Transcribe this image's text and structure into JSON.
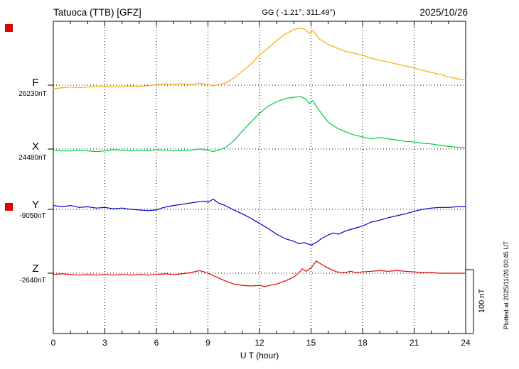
{
  "header": {
    "station": "Tatuoca (TTB)  [GFZ]",
    "coords": "GG ( -1.21°, 311.49°)",
    "date": "2025/10/26"
  },
  "axis": {
    "x_label": "U T (hour)",
    "x_ticks": [
      0,
      3,
      6,
      9,
      12,
      15,
      18,
      21,
      24
    ],
    "x_range": [
      0,
      24
    ]
  },
  "scale_bar": {
    "label": "100 nT",
    "nT": 100
  },
  "footer_note": "Plotted at 2025/11/26 00:45 UT",
  "markers": {
    "color": "#e00000"
  },
  "chart_data": {
    "type": "line",
    "x_unit": "UT hour",
    "x_range": [
      0,
      24
    ],
    "points_format": "[hour_UT, offset_nT_from_baseline]",
    "grid": "dotted vertical every 3 h, dotted horizontal at each component baseline",
    "legend_position": "left margin, colored component letters with baseline values",
    "series": [
      {
        "name": "F",
        "baseline_label": "26230nT",
        "baseline_nT": 26230,
        "color": "#ffa800",
        "points": [
          [
            0,
            -6
          ],
          [
            0.5,
            -4
          ],
          [
            1,
            -3
          ],
          [
            1.5,
            -4
          ],
          [
            2,
            -3
          ],
          [
            2.5,
            -2
          ],
          [
            3,
            -2
          ],
          [
            3.5,
            -3
          ],
          [
            4,
            -2
          ],
          [
            4.5,
            -1
          ],
          [
            5,
            -2
          ],
          [
            5.5,
            -1
          ],
          [
            6,
            1
          ],
          [
            6.5,
            2
          ],
          [
            7,
            1
          ],
          [
            7.5,
            2
          ],
          [
            8,
            1
          ],
          [
            8.5,
            3
          ],
          [
            9,
            1
          ],
          [
            9.25,
            -1
          ],
          [
            9.5,
            0
          ],
          [
            10,
            3
          ],
          [
            10.5,
            11
          ],
          [
            11,
            22
          ],
          [
            11.5,
            33
          ],
          [
            12,
            47
          ],
          [
            12.5,
            58
          ],
          [
            13,
            70
          ],
          [
            13.5,
            80
          ],
          [
            14,
            87
          ],
          [
            14.3,
            89
          ],
          [
            14.6,
            88
          ],
          [
            14.9,
            81
          ],
          [
            15.1,
            86
          ],
          [
            15.5,
            72
          ],
          [
            16,
            64
          ],
          [
            16.5,
            58
          ],
          [
            17,
            53
          ],
          [
            17.5,
            50
          ],
          [
            18,
            47
          ],
          [
            18.5,
            42
          ],
          [
            19,
            39
          ],
          [
            19.5,
            36
          ],
          [
            20,
            33
          ],
          [
            20.5,
            30
          ],
          [
            21,
            27
          ],
          [
            21.5,
            23
          ],
          [
            22,
            20
          ],
          [
            22.5,
            17
          ],
          [
            23,
            13
          ],
          [
            23.5,
            10
          ],
          [
            24,
            8
          ]
        ]
      },
      {
        "name": "X",
        "baseline_label": "24480nT",
        "baseline_nT": 24480,
        "color": "#00cb45",
        "points": [
          [
            0,
            -2
          ],
          [
            0.5,
            -3
          ],
          [
            1,
            -3
          ],
          [
            1.5,
            -2
          ],
          [
            2,
            -3
          ],
          [
            2.5,
            -4
          ],
          [
            3,
            -3
          ],
          [
            3.5,
            -1
          ],
          [
            4,
            -2
          ],
          [
            4.5,
            -3
          ],
          [
            5,
            -2
          ],
          [
            5.5,
            -3
          ],
          [
            6,
            -1
          ],
          [
            6.5,
            -2
          ],
          [
            7,
            -3
          ],
          [
            7.5,
            -2
          ],
          [
            8,
            -2
          ],
          [
            8.5,
            0
          ],
          [
            9,
            -2
          ],
          [
            9.3,
            -4
          ],
          [
            9.6,
            -2
          ],
          [
            10,
            2
          ],
          [
            10.5,
            13
          ],
          [
            11,
            28
          ],
          [
            11.5,
            42
          ],
          [
            12,
            56
          ],
          [
            12.5,
            67
          ],
          [
            13,
            74
          ],
          [
            13.5,
            79
          ],
          [
            14,
            81
          ],
          [
            14.4,
            82
          ],
          [
            14.7,
            78
          ],
          [
            14.9,
            71
          ],
          [
            15.1,
            76
          ],
          [
            15.3,
            67
          ],
          [
            15.6,
            56
          ],
          [
            16,
            42
          ],
          [
            16.5,
            33
          ],
          [
            17,
            27
          ],
          [
            17.5,
            22
          ],
          [
            18,
            19
          ],
          [
            18.5,
            16
          ],
          [
            19,
            18
          ],
          [
            19.5,
            16
          ],
          [
            20,
            14
          ],
          [
            20.5,
            12
          ],
          [
            21,
            11
          ],
          [
            21.5,
            9
          ],
          [
            22,
            8
          ],
          [
            22.5,
            6
          ],
          [
            23,
            4
          ],
          [
            23.5,
            3
          ],
          [
            24,
            2
          ]
        ]
      },
      {
        "name": "Y",
        "baseline_label": "-9050nT",
        "baseline_nT": -9050,
        "color": "#0000cc",
        "points": [
          [
            0,
            6
          ],
          [
            0.5,
            4
          ],
          [
            1,
            6
          ],
          [
            1.5,
            3
          ],
          [
            2,
            4
          ],
          [
            2.5,
            2
          ],
          [
            3,
            3
          ],
          [
            3.5,
            1
          ],
          [
            4,
            2
          ],
          [
            4.5,
            0
          ],
          [
            5,
            -1
          ],
          [
            5.5,
            -2
          ],
          [
            6,
            -1
          ],
          [
            6.3,
            2
          ],
          [
            6.6,
            4
          ],
          [
            7,
            6
          ],
          [
            7.5,
            8
          ],
          [
            8,
            10
          ],
          [
            8.5,
            12
          ],
          [
            8.8,
            13
          ],
          [
            9,
            11
          ],
          [
            9.3,
            16
          ],
          [
            9.6,
            10
          ],
          [
            10,
            6
          ],
          [
            10.5,
            -1
          ],
          [
            11,
            -7
          ],
          [
            11.5,
            -14
          ],
          [
            12,
            -22
          ],
          [
            12.5,
            -30
          ],
          [
            13,
            -39
          ],
          [
            13.5,
            -46
          ],
          [
            14,
            -50
          ],
          [
            14.3,
            -54
          ],
          [
            14.6,
            -52
          ],
          [
            15,
            -56
          ],
          [
            15.3,
            -52
          ],
          [
            15.6,
            -46
          ],
          [
            16,
            -40
          ],
          [
            16.3,
            -37
          ],
          [
            16.6,
            -39
          ],
          [
            17,
            -34
          ],
          [
            17.5,
            -30
          ],
          [
            18,
            -26
          ],
          [
            18.5,
            -20
          ],
          [
            19,
            -17
          ],
          [
            19.5,
            -13
          ],
          [
            20,
            -10
          ],
          [
            20.5,
            -7
          ],
          [
            21,
            -3
          ],
          [
            21.5,
            0
          ],
          [
            22,
            2
          ],
          [
            22.5,
            3
          ],
          [
            23,
            3
          ],
          [
            23.5,
            4
          ],
          [
            24,
            4
          ]
        ]
      },
      {
        "name": "Z",
        "baseline_label": "-2640nT",
        "baseline_nT": -2640,
        "color": "#e00000",
        "points": [
          [
            0,
            -2
          ],
          [
            0.5,
            -1
          ],
          [
            1,
            -2
          ],
          [
            1.5,
            -3
          ],
          [
            2,
            -2
          ],
          [
            2.5,
            -3
          ],
          [
            3,
            -2
          ],
          [
            3.5,
            -3
          ],
          [
            4,
            -2
          ],
          [
            4.5,
            -3
          ],
          [
            5,
            -2
          ],
          [
            5.5,
            -3
          ],
          [
            6,
            -2
          ],
          [
            6.5,
            -1
          ],
          [
            7,
            -2
          ],
          [
            7.5,
            -1
          ],
          [
            8,
            1
          ],
          [
            8.5,
            4
          ],
          [
            8.8,
            2
          ],
          [
            9,
            0
          ],
          [
            9.5,
            -6
          ],
          [
            10,
            -12
          ],
          [
            10.5,
            -17
          ],
          [
            11,
            -19
          ],
          [
            11.5,
            -20
          ],
          [
            12,
            -19
          ],
          [
            12.3,
            -21
          ],
          [
            12.6,
            -19
          ],
          [
            13,
            -17
          ],
          [
            13.5,
            -12
          ],
          [
            14,
            -6
          ],
          [
            14.3,
            1
          ],
          [
            14.5,
            7
          ],
          [
            14.7,
            3
          ],
          [
            15,
            8
          ],
          [
            15.3,
            19
          ],
          [
            15.6,
            14
          ],
          [
            16,
            8
          ],
          [
            16.5,
            2
          ],
          [
            17,
            1
          ],
          [
            17.3,
            3
          ],
          [
            17.6,
            1
          ],
          [
            18,
            2
          ],
          [
            18.5,
            3
          ],
          [
            19,
            4
          ],
          [
            19.5,
            3
          ],
          [
            20,
            4
          ],
          [
            20.5,
            3
          ],
          [
            21,
            2
          ],
          [
            21.5,
            1
          ],
          [
            22,
            1
          ],
          [
            22.5,
            0
          ],
          [
            23,
            0
          ],
          [
            23.5,
            0
          ],
          [
            24,
            0
          ]
        ]
      }
    ]
  }
}
